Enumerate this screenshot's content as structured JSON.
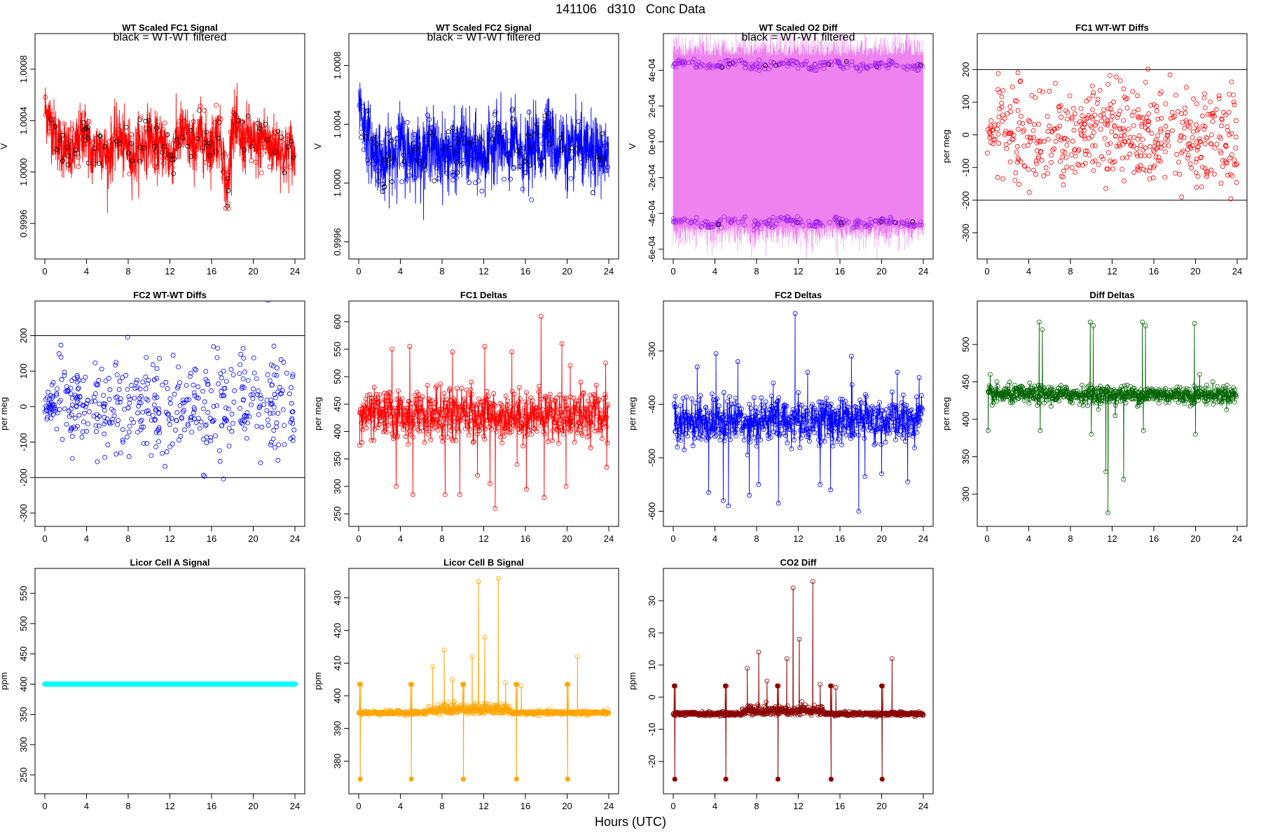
{
  "page": {
    "title": "141106   d310   Conc Data",
    "xlabel": "Hours (UTC)"
  },
  "chart_data": [
    {
      "id": "fc1-signal",
      "type": "line",
      "title": "WT Scaled FC1 Signal",
      "subtitle": "black = WT-WT filtered",
      "ylabel": "V",
      "xlabel": "",
      "xlim": [
        0,
        24
      ],
      "ylim": [
        0.9994,
        1.001
      ],
      "xticks": [
        0,
        4,
        8,
        12,
        16,
        20,
        24
      ],
      "yticks": [
        "0.9996",
        "1.0000",
        "1.0004",
        "1.0008"
      ],
      "color": "#ff0000",
      "overlay_color": "#000000",
      "x": [
        0,
        0.5,
        1,
        1.5,
        2,
        2.5,
        3,
        3.5,
        4,
        4.5,
        5,
        5.5,
        6,
        6.5,
        7,
        7.5,
        8,
        8.5,
        9,
        9.5,
        10,
        10.5,
        11,
        11.5,
        12,
        12.5,
        13,
        13.5,
        14,
        14.5,
        15,
        15.5,
        16,
        16.5,
        17,
        17.5,
        18,
        18.5,
        19,
        19.5,
        20,
        20.5,
        21,
        21.5,
        22,
        22.5,
        23,
        23.5,
        24
      ],
      "y": [
        1.0005,
        1.0004,
        1.0003,
        1.0002,
        1.0002,
        1.0001,
        1.0002,
        1.0003,
        1.0003,
        1.0001,
        1.0002,
        1.0002,
        1.0001,
        1.0002,
        1.0003,
        1.0002,
        1.0002,
        1.0001,
        1.0002,
        1.0002,
        1.0003,
        1.0002,
        1.0002,
        1.0002,
        1.0001,
        1.0002,
        1.0003,
        1.0003,
        1.0002,
        1.0002,
        1.0003,
        1.0002,
        1.0002,
        1.0003,
        1.0002,
        0.9998,
        1.0004,
        1.0003,
        1.0002,
        1.0003,
        1.0002,
        1.0002,
        1.0003,
        1.0002,
        1.0002,
        1.0002,
        1.0001,
        1.0002,
        1.0001
      ]
    },
    {
      "id": "fc2-signal",
      "type": "line",
      "title": "WT Scaled FC2 Signal",
      "subtitle": "black = WT-WT filtered",
      "ylabel": "V",
      "xlabel": "",
      "xlim": [
        0,
        24
      ],
      "ylim": [
        0.99955,
        1.00095
      ],
      "xticks": [
        0,
        4,
        8,
        12,
        16,
        20,
        24
      ],
      "yticks": [
        "0.9996",
        "1.0000",
        "1.0004",
        "1.0008"
      ],
      "color": "#0000ff",
      "overlay_color": "#000000",
      "x": [
        0,
        0.5,
        1,
        1.5,
        2,
        2.5,
        3,
        3.5,
        4,
        4.5,
        5,
        5.5,
        6,
        6.5,
        7,
        7.5,
        8,
        8.5,
        9,
        9.5,
        10,
        10.5,
        11,
        11.5,
        12,
        12.5,
        13,
        13.5,
        14,
        14.5,
        15,
        15.5,
        16,
        16.5,
        17,
        17.5,
        18,
        18.5,
        19,
        19.5,
        20,
        20.5,
        21,
        21.5,
        22,
        22.5,
        23,
        23.5,
        24
      ],
      "y": [
        1.0006,
        1.0004,
        1.0003,
        1.0002,
        1.0002,
        1.0001,
        1.0002,
        1.0002,
        1.0003,
        1.0002,
        1.0002,
        1.0002,
        1.0002,
        1.0002,
        1.0003,
        1.0002,
        1.0002,
        1.0002,
        1.0002,
        1.0002,
        1.0003,
        1.0002,
        1.0002,
        1.0002,
        1.0002,
        1.0002,
        1.0003,
        1.0003,
        1.0002,
        1.0002,
        1.0003,
        1.0002,
        1.0002,
        1.0002,
        1.0003,
        1.0002,
        1.0004,
        1.0003,
        1.0002,
        1.0003,
        1.0002,
        1.0002,
        1.0003,
        1.0002,
        1.0002,
        1.0002,
        1.0002,
        1.0002,
        1.0001
      ]
    },
    {
      "id": "o2-diff",
      "type": "line",
      "title": "WT Scaled O2 Diff",
      "subtitle": "black = WT-WT filtered",
      "ylabel": "V",
      "xlabel": "",
      "xlim": [
        0,
        24
      ],
      "ylim": [
        -0.0006,
        0.00055
      ],
      "xticks": [
        0,
        4,
        8,
        12,
        16,
        20,
        24
      ],
      "yticks": [
        "-6e-04",
        "-4e-04",
        "-2e-04",
        "0e+00",
        "2e-04",
        "4e-04"
      ],
      "color": "#ee82ee",
      "point_color": "#a020f0",
      "overlay_color": "#000000",
      "band": [
        -0.00047,
        0.00048
      ],
      "upper_level": 0.00043,
      "lower_level": -0.00045
    },
    {
      "id": "fc1-wtwt",
      "type": "scatter",
      "title": "FC1 WT-WT Diffs",
      "ylabel": "per meg",
      "xlabel": "",
      "xlim": [
        0,
        24
      ],
      "ylim": [
        -350,
        280
      ],
      "xticks": [
        0,
        4,
        8,
        12,
        16,
        20,
        24
      ],
      "yticks": [
        "-300",
        "-200",
        "-100",
        "0",
        "100",
        "200"
      ],
      "hlines": [
        200,
        -200
      ],
      "color": "#ff0000",
      "spread": 70,
      "n_points": 520
    },
    {
      "id": "fc2-wtwt",
      "type": "scatter",
      "title": "FC2 WT-WT Diffs",
      "ylabel": "per meg",
      "xlabel": "",
      "xlim": [
        0,
        24
      ],
      "ylim": [
        -310,
        270
      ],
      "xticks": [
        0,
        4,
        8,
        12,
        16,
        20,
        24
      ],
      "yticks": [
        "-300",
        "-200",
        "-100",
        "0",
        "100",
        "200"
      ],
      "hlines": [
        200,
        -200
      ],
      "color": "#0000ff",
      "spread": 70,
      "n_points": 480
    },
    {
      "id": "fc1-deltas",
      "type": "line",
      "title": "FC1 Deltas",
      "ylabel": "per meg",
      "xlabel": "",
      "xlim": [
        0,
        24
      ],
      "ylim": [
        245,
        620
      ],
      "xticks": [
        0,
        4,
        8,
        12,
        16,
        20,
        24
      ],
      "yticks": [
        "250",
        "300",
        "350",
        "400",
        "450",
        "500",
        "550",
        "600"
      ],
      "color": "#ff0000",
      "baseline": 430,
      "spread": 22,
      "spikes": [
        [
          0.1,
          375
        ],
        [
          0.3,
          380
        ],
        [
          3.2,
          550
        ],
        [
          3.6,
          300
        ],
        [
          4.9,
          555
        ],
        [
          5.2,
          285
        ],
        [
          7.4,
          480
        ],
        [
          8.3,
          285
        ],
        [
          9.0,
          545
        ],
        [
          9.7,
          285
        ],
        [
          10.8,
          490
        ],
        [
          11.4,
          320
        ],
        [
          12.1,
          555
        ],
        [
          12.6,
          305
        ],
        [
          13.1,
          260
        ],
        [
          14.7,
          545
        ],
        [
          15.2,
          340
        ],
        [
          16.1,
          295
        ],
        [
          17.5,
          610
        ],
        [
          17.8,
          280
        ],
        [
          19.5,
          560
        ],
        [
          19.9,
          300
        ],
        [
          20.3,
          520
        ],
        [
          21.3,
          490
        ],
        [
          23.7,
          525
        ],
        [
          23.8,
          335
        ]
      ]
    },
    {
      "id": "fc2-deltas",
      "type": "line",
      "title": "FC2 Deltas",
      "ylabel": "per meg",
      "xlabel": "",
      "xlim": [
        0,
        24
      ],
      "ylim": [
        -610,
        -225
      ],
      "xticks": [
        0,
        4,
        8,
        12,
        16,
        20,
        24
      ],
      "yticks": [
        "-600",
        "-500",
        "-400",
        "-300"
      ],
      "color": "#0000ff",
      "baseline": -430,
      "spread": 22,
      "spikes": [
        [
          0.2,
          -385
        ],
        [
          0.4,
          -480
        ],
        [
          2.3,
          -330
        ],
        [
          3.4,
          -565
        ],
        [
          4.1,
          -305
        ],
        [
          4.8,
          -580
        ],
        [
          5.3,
          -590
        ],
        [
          6.2,
          -320
        ],
        [
          7.3,
          -570
        ],
        [
          8.2,
          -550
        ],
        [
          9.6,
          -360
        ],
        [
          10.1,
          -585
        ],
        [
          11.7,
          -230
        ],
        [
          12.9,
          -340
        ],
        [
          14.1,
          -550
        ],
        [
          15.1,
          -560
        ],
        [
          17.1,
          -310
        ],
        [
          17.8,
          -600
        ],
        [
          18.4,
          -535
        ],
        [
          20.0,
          -530
        ],
        [
          21.5,
          -340
        ],
        [
          22.5,
          -545
        ],
        [
          23.6,
          -350
        ]
      ]
    },
    {
      "id": "diff-deltas",
      "type": "line",
      "title": "Diff Deltas",
      "ylabel": "per meg",
      "xlabel": "",
      "xlim": [
        0,
        24
      ],
      "ylim": [
        270,
        545
      ],
      "xticks": [
        0,
        4,
        8,
        12,
        16,
        20,
        24
      ],
      "yticks": [
        "300",
        "350",
        "400",
        "450",
        "500"
      ],
      "color": "#006400",
      "baseline": 433,
      "spread": 6,
      "spikes": [
        [
          0.1,
          385
        ],
        [
          0.3,
          460
        ],
        [
          5.0,
          530
        ],
        [
          5.1,
          385
        ],
        [
          5.3,
          520
        ],
        [
          9.9,
          530
        ],
        [
          10.0,
          380
        ],
        [
          10.2,
          525
        ],
        [
          11.4,
          330
        ],
        [
          11.6,
          275
        ],
        [
          12.3,
          405
        ],
        [
          13.1,
          320
        ],
        [
          14.9,
          530
        ],
        [
          15.0,
          385
        ],
        [
          15.2,
          525
        ],
        [
          19.9,
          528
        ],
        [
          20.0,
          380
        ],
        [
          20.4,
          460
        ]
      ]
    },
    {
      "id": "licor-a",
      "type": "line",
      "title": "Licor Cell A Signal",
      "ylabel": "ppm",
      "xlabel": "",
      "xlim": [
        0,
        24
      ],
      "ylim": [
        235,
        575
      ],
      "xticks": [
        0,
        4,
        8,
        12,
        16,
        20,
        24
      ],
      "yticks": [
        "250",
        "300",
        "350",
        "400",
        "450",
        "500",
        "550"
      ],
      "color": "#00ffff",
      "level": 400
    },
    {
      "id": "licor-b",
      "type": "line",
      "title": "Licor Cell B Signal",
      "ylabel": "ppm",
      "xlabel": "",
      "xlim": [
        0,
        24
      ],
      "ylim": [
        373,
        436
      ],
      "xticks": [
        0,
        4,
        8,
        12,
        16,
        20,
        24
      ],
      "yticks": [
        "380",
        "390",
        "400",
        "410",
        "420",
        "430"
      ],
      "color": "#ffa500",
      "baseline": 394.8,
      "spread": 0.3,
      "events": [
        0.1,
        5.0,
        10.0,
        15.1,
        20.0
      ],
      "event_high": 403.5,
      "event_low": 374.5,
      "spikes": [
        [
          7.1,
          409
        ],
        [
          8.2,
          414
        ],
        [
          9.0,
          405
        ],
        [
          10.9,
          412
        ],
        [
          11.5,
          435
        ],
        [
          12.1,
          418
        ],
        [
          13.4,
          436
        ],
        [
          14.1,
          404
        ],
        [
          15.6,
          403
        ],
        [
          21.0,
          412
        ]
      ]
    },
    {
      "id": "co2-diff",
      "type": "line",
      "title": "CO2 Diff",
      "ylabel": "ppm",
      "xlabel": "",
      "xlim": [
        0,
        24
      ],
      "ylim": [
        -27,
        37
      ],
      "xticks": [
        0,
        4,
        8,
        12,
        16,
        20,
        24
      ],
      "yticks": [
        "-20",
        "-10",
        "0",
        "10",
        "20",
        "30"
      ],
      "color": "#8b0000",
      "baseline": -5.2,
      "spread": 0.3,
      "events": [
        0.1,
        5.0,
        10.0,
        15.1,
        20.0
      ],
      "event_high": 3.5,
      "event_low": -25.5,
      "spikes": [
        [
          7.1,
          9
        ],
        [
          8.2,
          14
        ],
        [
          9.0,
          5
        ],
        [
          10.9,
          12
        ],
        [
          11.5,
          34
        ],
        [
          12.1,
          18
        ],
        [
          13.4,
          36
        ],
        [
          14.1,
          4
        ],
        [
          15.6,
          3
        ],
        [
          21.0,
          12
        ]
      ]
    }
  ]
}
